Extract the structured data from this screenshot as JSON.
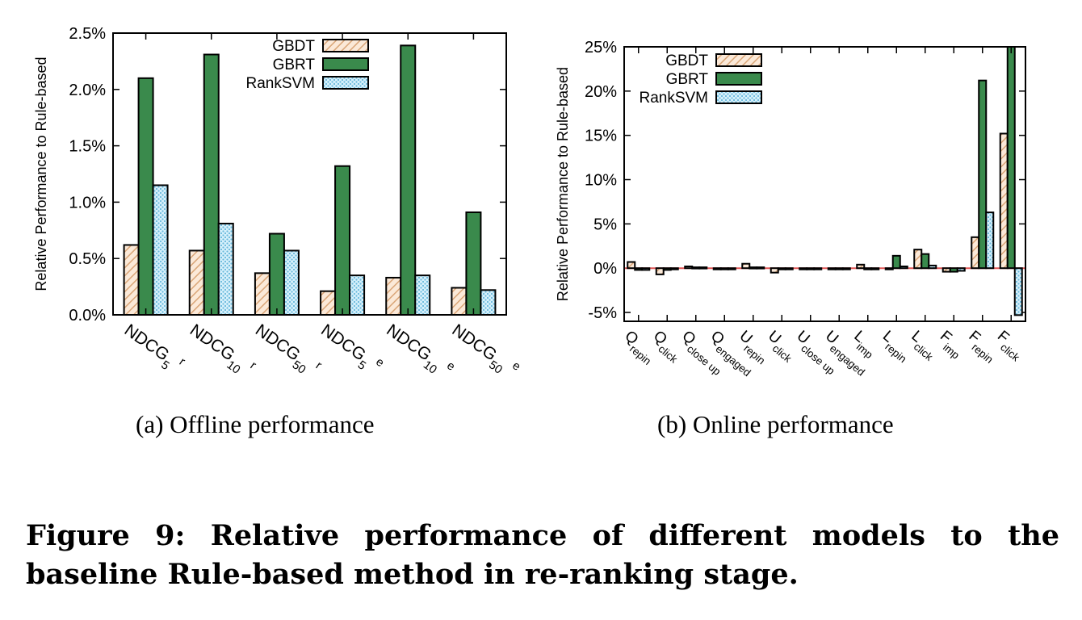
{
  "figure": {
    "caption": "Figure 9: Relative performance of different models to the baseline Rule-based method in re-ranking stage."
  },
  "colors": {
    "GBDT_hatch": "#d9a577",
    "GBDT_fill": "#fbe9d8",
    "GBRT_fill": "#3a8a4c",
    "RankSVM_dots": "#69b9dc",
    "RankSVM_fill": "#d6f0fb",
    "zero_line": "#e05555"
  },
  "chart_data": [
    {
      "type": "bar",
      "caption": "(a)  Offline performance",
      "ylabel": "Relative Performance to Rule-based",
      "ylim": [
        0,
        2.5
      ],
      "yticks": [
        "0.0%",
        "0.5%",
        "1.0%",
        "1.5%",
        "2.0%",
        "2.5%"
      ],
      "legend_position": "top-right",
      "categories": [
        {
          "base": "NDCG",
          "sub": "5",
          "sup": "r"
        },
        {
          "base": "NDCG",
          "sub": "10",
          "sup": "r"
        },
        {
          "base": "NDCG",
          "sub": "50",
          "sup": "r"
        },
        {
          "base": "NDCG",
          "sub": "5",
          "sup": "e"
        },
        {
          "base": "NDCG",
          "sub": "10",
          "sup": "e"
        },
        {
          "base": "NDCG",
          "sub": "50",
          "sup": "e"
        }
      ],
      "series": [
        {
          "name": "GBDT",
          "values": [
            0.62,
            0.57,
            0.37,
            0.21,
            0.33,
            0.24
          ]
        },
        {
          "name": "GBRT",
          "values": [
            2.1,
            2.31,
            0.72,
            1.32,
            2.39,
            0.91
          ]
        },
        {
          "name": "RankSVM",
          "values": [
            1.15,
            0.81,
            0.57,
            0.35,
            0.35,
            0.22
          ]
        }
      ]
    },
    {
      "type": "bar",
      "caption": "(b)  Online performance",
      "ylabel": "Relative Performance to Rule-based",
      "ylim": [
        -6,
        25
      ],
      "yticks": [
        "-5%",
        "0%",
        "5%",
        "10%",
        "15%",
        "20%",
        "25%"
      ],
      "ytick_values": [
        -5,
        0,
        5,
        10,
        15,
        20,
        25
      ],
      "legend_position": "top-left",
      "categories": [
        {
          "base": "Q",
          "sub": "repin"
        },
        {
          "base": "Q",
          "sub": "click"
        },
        {
          "base": "Q",
          "sub": "close up"
        },
        {
          "base": "Q",
          "sub": "engaged"
        },
        {
          "base": "U",
          "sub": "repin"
        },
        {
          "base": "U",
          "sub": "click"
        },
        {
          "base": "U",
          "sub": "close up"
        },
        {
          "base": "U",
          "sub": "engaged"
        },
        {
          "base": "L",
          "sub": "imp"
        },
        {
          "base": "L",
          "sub": "repin"
        },
        {
          "base": "L",
          "sub": "click"
        },
        {
          "base": "F",
          "sub": "imp"
        },
        {
          "base": "F",
          "sub": "repin"
        },
        {
          "base": "F",
          "sub": "click"
        }
      ],
      "series": [
        {
          "name": "GBDT",
          "values": [
            0.7,
            -0.7,
            0.2,
            0.0,
            0.5,
            -0.5,
            0.0,
            0.0,
            0.4,
            0.0,
            2.1,
            -0.4,
            3.5,
            15.2
          ]
        },
        {
          "name": "GBRT",
          "values": [
            -0.2,
            -0.2,
            0.1,
            0.0,
            0.1,
            -0.1,
            0.0,
            0.0,
            -0.1,
            1.4,
            1.6,
            -0.4,
            21.2,
            25.0
          ]
        },
        {
          "name": "RankSVM",
          "values": [
            -0.2,
            0.0,
            0.1,
            0.0,
            0.1,
            0.0,
            0.0,
            0.0,
            -0.1,
            0.2,
            0.3,
            -0.3,
            6.3,
            -5.3
          ]
        }
      ]
    }
  ]
}
